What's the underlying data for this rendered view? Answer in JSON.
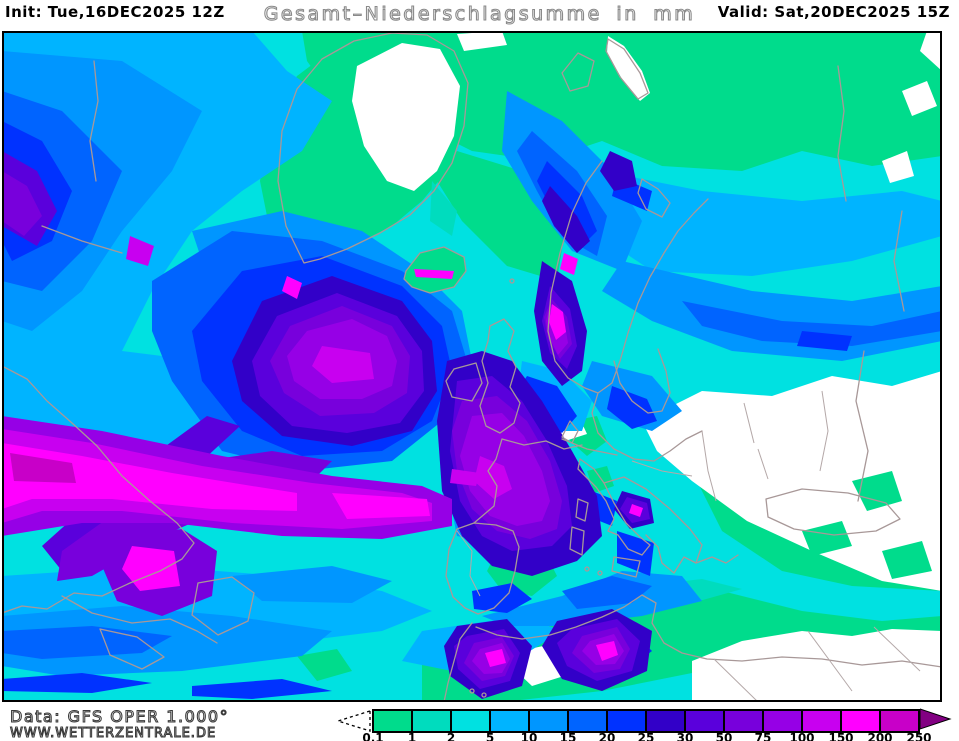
{
  "header": {
    "init_label": "Init: Tue,16DEC2025 12Z",
    "title": "Gesamt–Niederschlagsumme in mm",
    "valid_label": "Valid: Sat,20DEC2025 15Z"
  },
  "footer": {
    "data_source": "Data: GFS OPER 1.000°",
    "website": "WWW.WETTERZENTRALE.DE"
  },
  "legend": {
    "unit": "mm",
    "tick_labels": [
      "0.1",
      "1",
      "2",
      "5",
      "10",
      "15",
      "20",
      "25",
      "30",
      "50",
      "75",
      "100",
      "150",
      "200",
      "250"
    ],
    "box_colors": [
      "#00DC8C",
      "#00DCBE",
      "#00E1E1",
      "#00B4FF",
      "#0096FF",
      "#0064FF",
      "#0032FF",
      "#3200C8",
      "#5A00DC",
      "#7800DC",
      "#9600E6",
      "#C800F0",
      "#FF00FF",
      "#C800C8"
    ],
    "overflow_color": "#820082",
    "underflow_symbol": "dashed-left-arrow"
  },
  "map": {
    "no_precip_color": "#FFFFFF",
    "coast_color": "#A89898",
    "border_color": "#B4A8A8",
    "frame_color": "#000000"
  }
}
